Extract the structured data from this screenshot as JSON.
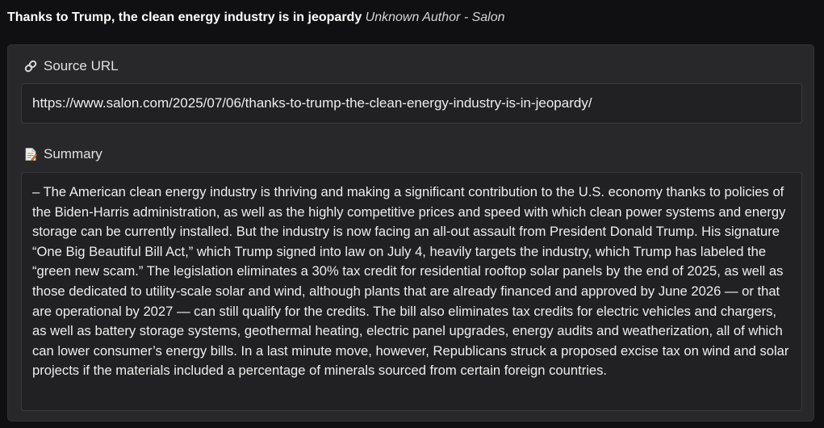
{
  "article": {
    "headline": "Thanks to Trump, the clean energy industry is in jeopardy",
    "byline": "Unknown Author - Salon"
  },
  "source": {
    "label": "Source URL",
    "icon": "link-icon",
    "url": "https://www.salon.com/2025/07/06/thanks-to-trump-the-clean-energy-industry-is-in-jeopardy/"
  },
  "summary": {
    "label": "Summary",
    "icon": "document-icon",
    "text": "– The American clean energy industry is thriving and making a significant contribution to the U.S. economy thanks to policies of the Biden-Harris administration, as well as the highly competitive prices and speed with which clean power systems and energy storage can be currently installed. But the industry is now facing an all-out assault from President Donald Trump. His signature “One Big Beautiful Bill Act,” which Trump signed into law on July 4, heavily targets the industry, which Trump has labeled the “green new scam.” The legislation eliminates a 30% tax credit for residential rooftop solar panels by the end of 2025, as well as those dedicated to utility-scale solar and wind, although plants that are already financed and approved by June 2026 — or that are operational by 2027 — can still qualify for the credits. The bill also eliminates tax credits for electric vehicles and chargers, as well as battery storage systems, geothermal heating, electric panel upgrades, energy audits and weatherization, all of which can lower consumer’s energy bills. In a last minute move, however, Republicans struck a proposed excise tax on wind and solar projects if the materials included a percentage of minerals sourced from certain foreign countries."
  },
  "colors": {
    "background": "#101012",
    "panel": "#28282a",
    "field": "#212123",
    "text": "#ededed"
  }
}
